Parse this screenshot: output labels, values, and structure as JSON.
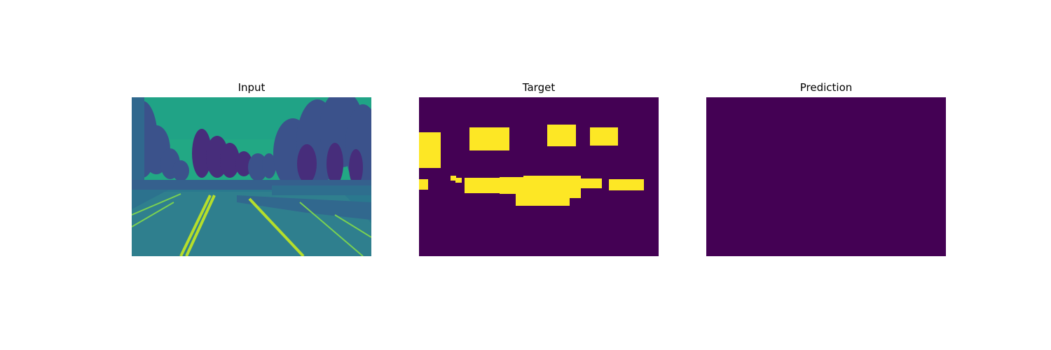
{
  "figure": {
    "panels": [
      {
        "id": "input",
        "title": "Input"
      },
      {
        "id": "target",
        "title": "Target"
      },
      {
        "id": "prediction",
        "title": "Prediction"
      }
    ]
  },
  "colors": {
    "background_low": "#440154",
    "mask_high": "#fde725",
    "sky": "#22a884",
    "tree": "#3b528b",
    "tree_dark": "#472d7b",
    "road": "#2a788e",
    "lane_line": "#b5de2b"
  }
}
